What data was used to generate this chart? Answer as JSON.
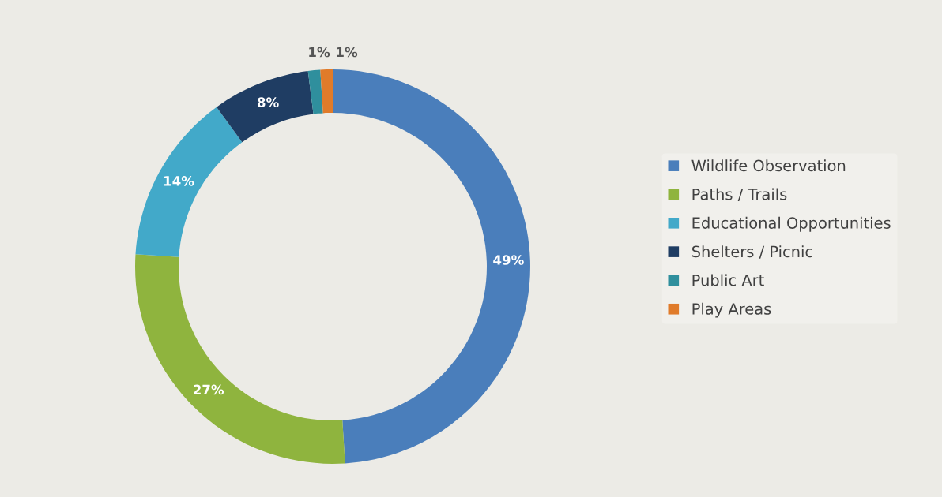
{
  "chart_data": {
    "type": "donut",
    "categories": [
      "Wildlife Observation",
      "Paths / Trails",
      "Educational Opportunities",
      "Shelters / Picnic",
      "Public Art",
      "Play Areas"
    ],
    "values": [
      49,
      27,
      14,
      8,
      1,
      1
    ],
    "colors": [
      "#4a7ebb",
      "#8fb43e",
      "#42a9c9",
      "#1f3d63",
      "#2f8f9d",
      "#e07b2a"
    ],
    "value_labels": [
      "49%",
      "27%",
      "14%",
      "8%",
      "1%",
      "1%"
    ],
    "legend": "right"
  }
}
